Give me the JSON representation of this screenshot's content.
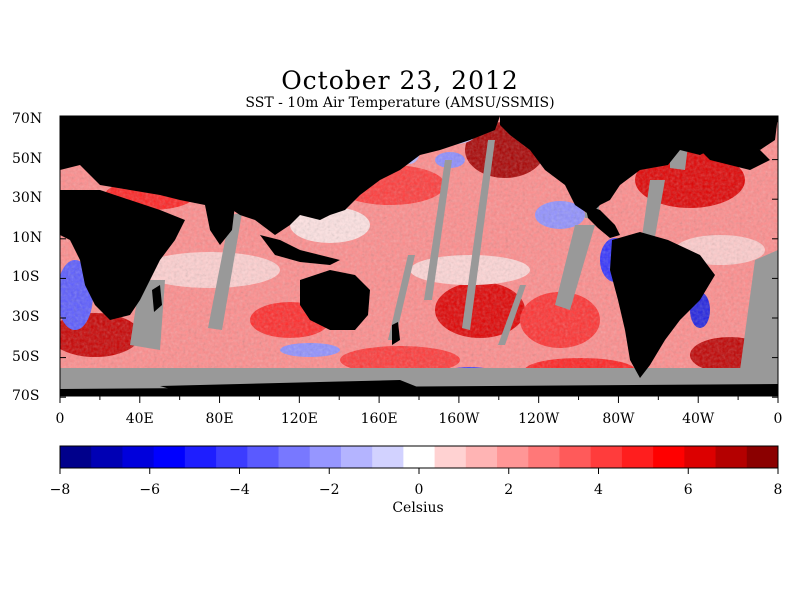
{
  "title": "October 23, 2012",
  "subtitle": "SST - 10m Air Temperature (AMSU/SSMIS)",
  "lat_labels": [
    "70N",
    "50N",
    "30N",
    "10N",
    "10S",
    "30S",
    "50S",
    "70S"
  ],
  "lon_labels": [
    "0",
    "40E",
    "80E",
    "120E",
    "160E",
    "160W",
    "120W",
    "80W",
    "40W",
    "0"
  ],
  "colorbar": {
    "min": -8,
    "max": 8,
    "tick_labels": [
      "-8",
      "-6",
      "-4",
      "-2",
      "0",
      "2",
      "4",
      "6",
      "8"
    ],
    "unit": "Celsius",
    "colors": [
      "#00008b",
      "#0000b4",
      "#0000dc",
      "#0000ff",
      "#1e1eff",
      "#3c3cff",
      "#5a5aff",
      "#7878ff",
      "#9696ff",
      "#b4b4ff",
      "#d2d2ff",
      "#ffffff",
      "#ffd2d2",
      "#ffb4b4",
      "#ff9696",
      "#ff7878",
      "#ff5a5a",
      "#ff3c3c",
      "#ff1e1e",
      "#ff0000",
      "#dc0000",
      "#b40000",
      "#8b0000"
    ]
  },
  "colors": {
    "land": "#000000",
    "no_data": "#999999",
    "cold": "#0000ff",
    "warm": "#ff0000"
  }
}
